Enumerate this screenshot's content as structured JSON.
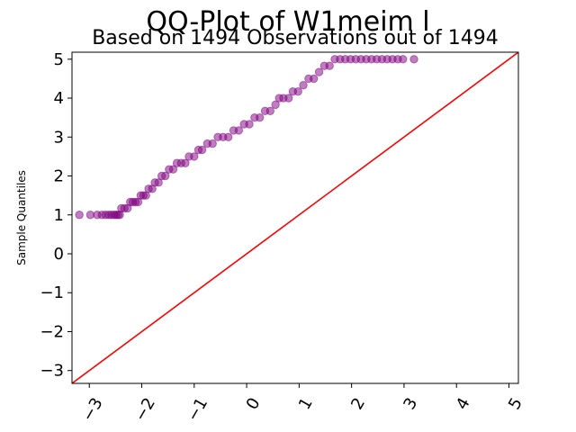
{
  "chart_data": {
    "type": "scatter",
    "title": "QQ-Plot of W1meim l",
    "subtitle": "Based on 1494 Observations out of 1494",
    "xlabel": "",
    "ylabel": "Sample Quantiles",
    "xlim": [
      -3.33,
      5.18
    ],
    "ylim": [
      -3.33,
      5.18
    ],
    "xticks": [
      -3,
      -2,
      -1,
      0,
      1,
      2,
      3,
      4,
      5
    ],
    "xtick_labels": [
      "−3",
      "−2",
      "−1",
      "0",
      "1",
      "2",
      "3",
      "4",
      "5"
    ],
    "yticks": [
      -3,
      -2,
      -1,
      0,
      1,
      2,
      3,
      4,
      5
    ],
    "ytick_labels": [
      "−3",
      "−2",
      "−1",
      "0",
      "1",
      "2",
      "3",
      "4",
      "5"
    ],
    "grid": false,
    "point_color": "#800080",
    "line_color": "#ff0000",
    "reference_line": {
      "x": [
        -3.33,
        5.18
      ],
      "y": [
        -3.33,
        5.18
      ]
    },
    "series": [
      {
        "points": [
          [
            -3.19,
            1.0
          ],
          [
            -2.98,
            1.0
          ],
          [
            -2.85,
            1.0
          ],
          [
            -2.76,
            1.0
          ],
          [
            -2.69,
            1.0
          ],
          [
            -2.63,
            1.0
          ],
          [
            -2.58,
            1.0
          ],
          [
            -2.53,
            1.0
          ],
          [
            -2.49,
            1.0
          ],
          [
            -2.45,
            1.0
          ],
          [
            -2.42,
            1.0
          ],
          [
            -2.39,
            1.17
          ],
          [
            -2.33,
            1.17
          ],
          [
            -2.27,
            1.17
          ],
          [
            -2.22,
            1.33
          ],
          [
            -2.17,
            1.33
          ],
          [
            -2.12,
            1.33
          ],
          [
            -2.07,
            1.33
          ],
          [
            -2.02,
            1.5
          ],
          [
            -1.97,
            1.5
          ],
          [
            -1.92,
            1.5
          ],
          [
            -1.87,
            1.67
          ],
          [
            -1.8,
            1.67
          ],
          [
            -1.75,
            1.83
          ],
          [
            -1.68,
            1.83
          ],
          [
            -1.62,
            2.0
          ],
          [
            -1.55,
            2.0
          ],
          [
            -1.48,
            2.17
          ],
          [
            -1.4,
            2.17
          ],
          [
            -1.33,
            2.33
          ],
          [
            -1.25,
            2.33
          ],
          [
            -1.17,
            2.33
          ],
          [
            -1.1,
            2.5
          ],
          [
            -1.0,
            2.5
          ],
          [
            -0.92,
            2.67
          ],
          [
            -0.85,
            2.67
          ],
          [
            -0.75,
            2.83
          ],
          [
            -0.65,
            2.83
          ],
          [
            -0.55,
            3.0
          ],
          [
            -0.45,
            3.0
          ],
          [
            -0.35,
            3.0
          ],
          [
            -0.25,
            3.17
          ],
          [
            -0.15,
            3.17
          ],
          [
            -0.05,
            3.33
          ],
          [
            0.05,
            3.33
          ],
          [
            0.15,
            3.5
          ],
          [
            0.25,
            3.5
          ],
          [
            0.35,
            3.67
          ],
          [
            0.45,
            3.67
          ],
          [
            0.55,
            3.83
          ],
          [
            0.62,
            4.0
          ],
          [
            0.7,
            4.0
          ],
          [
            0.8,
            4.0
          ],
          [
            0.88,
            4.17
          ],
          [
            0.98,
            4.17
          ],
          [
            1.08,
            4.33
          ],
          [
            1.18,
            4.5
          ],
          [
            1.28,
            4.5
          ],
          [
            1.38,
            4.67
          ],
          [
            1.48,
            4.83
          ],
          [
            1.58,
            4.83
          ],
          [
            1.68,
            5.0
          ],
          [
            1.78,
            5.0
          ],
          [
            1.88,
            5.0
          ],
          [
            1.98,
            5.0
          ],
          [
            2.08,
            5.0
          ],
          [
            2.18,
            5.0
          ],
          [
            2.28,
            5.0
          ],
          [
            2.38,
            5.0
          ],
          [
            2.48,
            5.0
          ],
          [
            2.58,
            5.0
          ],
          [
            2.68,
            5.0
          ],
          [
            2.78,
            5.0
          ],
          [
            2.88,
            5.0
          ],
          [
            2.98,
            5.0
          ],
          [
            3.19,
            5.0
          ]
        ]
      }
    ]
  }
}
